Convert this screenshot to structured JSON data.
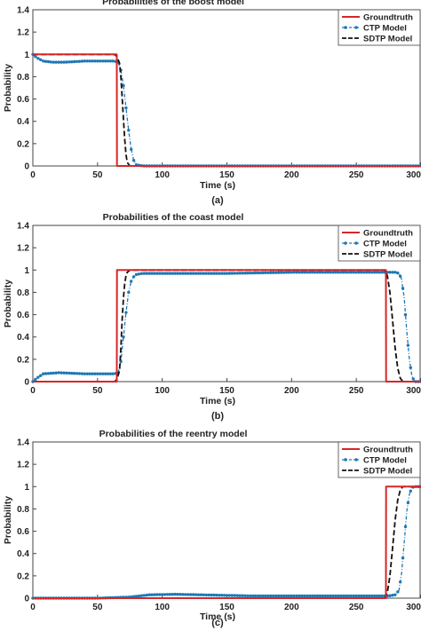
{
  "chart_data": [
    {
      "type": "line",
      "title": "Probabilities of the boost model",
      "caption": "(a)",
      "xlabel": "Time (s)",
      "ylabel": "Probability",
      "xlim": [
        0,
        300
      ],
      "ylim": [
        0,
        1.4
      ],
      "xticks": [
        0,
        50,
        100,
        150,
        200,
        250,
        300
      ],
      "yticks": [
        0,
        0.2,
        0.4,
        0.6,
        0.8,
        1,
        1.2,
        1.4
      ],
      "grid": false,
      "legend_position": "top-right",
      "series": [
        {
          "name": "Groundtruth",
          "color": "#d62728",
          "style": "solid",
          "x": [
            0,
            64.9,
            65,
            300
          ],
          "y": [
            1,
            1,
            0,
            0
          ]
        },
        {
          "name": "CTP Model",
          "color": "#1f77b4",
          "style": "dash-dot-markers",
          "x": [
            0,
            3,
            8,
            15,
            25,
            40,
            55,
            63,
            66,
            68,
            70,
            72,
            74,
            76,
            78,
            80,
            85,
            100,
            150,
            200,
            250,
            300
          ],
          "y": [
            1,
            0.97,
            0.94,
            0.93,
            0.93,
            0.94,
            0.94,
            0.94,
            0.93,
            0.86,
            0.72,
            0.52,
            0.32,
            0.15,
            0.05,
            0.01,
            0,
            0,
            0,
            0,
            0,
            0
          ]
        },
        {
          "name": "SDTP Model",
          "color": "#111111",
          "style": "dashed",
          "x": [
            0,
            63,
            65,
            67,
            68,
            69,
            70,
            71,
            72,
            73,
            75,
            300
          ],
          "y": [
            1,
            1,
            0.98,
            0.92,
            0.8,
            0.62,
            0.42,
            0.24,
            0.1,
            0.03,
            0,
            0
          ]
        }
      ]
    },
    {
      "type": "line",
      "title": "Probabilities of the coast model",
      "caption": "(b)",
      "xlabel": "Time (s)",
      "ylabel": "Probability",
      "xlim": [
        0,
        300
      ],
      "ylim": [
        0,
        1.4
      ],
      "xticks": [
        0,
        50,
        100,
        150,
        200,
        250,
        300
      ],
      "yticks": [
        0,
        0.2,
        0.4,
        0.6,
        0.8,
        1,
        1.2,
        1.4
      ],
      "grid": false,
      "legend_position": "top-right",
      "series": [
        {
          "name": "Groundtruth",
          "color": "#d62728",
          "style": "solid",
          "x": [
            0,
            64.9,
            65,
            272.9,
            273,
            300
          ],
          "y": [
            0,
            0,
            1,
            1,
            0,
            0
          ]
        },
        {
          "name": "CTP Model",
          "color": "#1f77b4",
          "style": "dash-dot-markers",
          "x": [
            0,
            3,
            8,
            20,
            40,
            55,
            63,
            66,
            68,
            70,
            72,
            74,
            76,
            78,
            80,
            85,
            95,
            150,
            200,
            250,
            275,
            280,
            283,
            285,
            287,
            289,
            291,
            293,
            295,
            300
          ],
          "y": [
            0,
            0.03,
            0.07,
            0.08,
            0.07,
            0.07,
            0.07,
            0.08,
            0.18,
            0.4,
            0.62,
            0.8,
            0.9,
            0.94,
            0.96,
            0.97,
            0.97,
            0.97,
            0.98,
            0.98,
            0.98,
            0.98,
            0.97,
            0.92,
            0.75,
            0.45,
            0.2,
            0.05,
            0,
            0
          ]
        },
        {
          "name": "SDTP Model",
          "color": "#111111",
          "style": "dashed",
          "x": [
            0,
            63,
            65,
            67,
            68,
            69,
            70,
            71,
            72,
            73,
            75,
            272,
            274,
            276,
            278,
            280,
            282,
            284,
            286,
            300
          ],
          "y": [
            0,
            0,
            0.02,
            0.1,
            0.3,
            0.55,
            0.75,
            0.88,
            0.95,
            0.98,
            1,
            1,
            0.95,
            0.8,
            0.55,
            0.3,
            0.12,
            0.03,
            0,
            0
          ]
        }
      ]
    },
    {
      "type": "line",
      "title": "Probabilities of the reentry model",
      "caption": "(c)",
      "xlabel": "Time (s)",
      "ylabel": "Probability",
      "xlim": [
        0,
        300
      ],
      "ylim": [
        0,
        1.4
      ],
      "xticks": [
        0,
        50,
        100,
        150,
        200,
        250,
        300
      ],
      "yticks": [
        0,
        0.2,
        0.4,
        0.6,
        0.8,
        1,
        1.2,
        1.4
      ],
      "grid": false,
      "legend_position": "top-right",
      "series": [
        {
          "name": "Groundtruth",
          "color": "#d62728",
          "style": "solid",
          "x": [
            0,
            272.9,
            273,
            300
          ],
          "y": [
            0,
            0,
            1,
            1
          ]
        },
        {
          "name": "CTP Model",
          "color": "#1f77b4",
          "style": "dash-dot-markers",
          "x": [
            0,
            50,
            75,
            90,
            110,
            130,
            150,
            170,
            200,
            230,
            250,
            270,
            275,
            280,
            283,
            285,
            287,
            289,
            291,
            293,
            295,
            300
          ],
          "y": [
            0,
            0,
            0.01,
            0.03,
            0.035,
            0.03,
            0.025,
            0.02,
            0.02,
            0.02,
            0.02,
            0.02,
            0.02,
            0.03,
            0.07,
            0.22,
            0.5,
            0.78,
            0.93,
            0.99,
            1,
            1
          ]
        },
        {
          "name": "SDTP Model",
          "color": "#111111",
          "style": "dashed",
          "x": [
            0,
            272,
            274,
            276,
            278,
            280,
            282,
            284,
            286,
            300
          ],
          "y": [
            0,
            0,
            0.05,
            0.2,
            0.45,
            0.7,
            0.88,
            0.97,
            1,
            1
          ]
        }
      ]
    }
  ]
}
